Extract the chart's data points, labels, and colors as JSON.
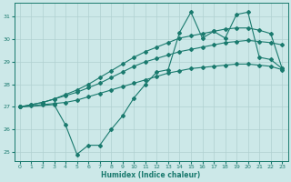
{
  "xlabel": "Humidex (Indice chaleur)",
  "xlim": [
    -0.5,
    23.5
  ],
  "ylim": [
    24.6,
    31.6
  ],
  "yticks": [
    25,
    26,
    27,
    28,
    29,
    30,
    31
  ],
  "xticks": [
    0,
    1,
    2,
    3,
    4,
    5,
    6,
    7,
    8,
    9,
    10,
    11,
    12,
    13,
    14,
    15,
    16,
    17,
    18,
    19,
    20,
    21,
    22,
    23
  ],
  "bg_color": "#cce8e8",
  "line_color": "#1a7a6e",
  "grid_color": "#b0d0d0",
  "line1_x": [
    0,
    1,
    2,
    3,
    4,
    5,
    6,
    7,
    8,
    9,
    10,
    11,
    12,
    13,
    14,
    15,
    16,
    17,
    18,
    19,
    20,
    21,
    22,
    23
  ],
  "line1_y": [
    27.0,
    27.05,
    27.1,
    27.15,
    27.2,
    27.3,
    27.45,
    27.6,
    27.75,
    27.9,
    28.05,
    28.2,
    28.35,
    28.5,
    28.6,
    28.7,
    28.75,
    28.8,
    28.85,
    28.9,
    28.9,
    28.85,
    28.8,
    28.65
  ],
  "line2_x": [
    0,
    1,
    2,
    3,
    4,
    5,
    6,
    7,
    8,
    9,
    10,
    11,
    12,
    13,
    14,
    15,
    16,
    17,
    18,
    19,
    20,
    21,
    22,
    23
  ],
  "line2_y": [
    27.0,
    27.1,
    27.2,
    27.35,
    27.5,
    27.65,
    27.85,
    28.05,
    28.3,
    28.55,
    28.8,
    29.0,
    29.15,
    29.3,
    29.45,
    29.55,
    29.65,
    29.75,
    29.85,
    29.9,
    29.95,
    29.9,
    29.85,
    29.75
  ],
  "line3_x": [
    0,
    1,
    2,
    3,
    4,
    5,
    6,
    7,
    8,
    9,
    10,
    11,
    12,
    13,
    14,
    15,
    16,
    17,
    18,
    19,
    20,
    21,
    22,
    23
  ],
  "line3_y": [
    27.0,
    27.1,
    27.2,
    27.35,
    27.55,
    27.75,
    28.0,
    28.3,
    28.6,
    28.9,
    29.2,
    29.45,
    29.65,
    29.85,
    30.05,
    30.15,
    30.25,
    30.35,
    30.45,
    30.5,
    30.5,
    30.4,
    30.25,
    28.7
  ],
  "line4_x": [
    0,
    3,
    4,
    5,
    6,
    7,
    8,
    9,
    10,
    11,
    12,
    13,
    14,
    15,
    16,
    17,
    18,
    19,
    20,
    21,
    22,
    23
  ],
  "line4_y": [
    27.0,
    27.1,
    26.2,
    24.9,
    25.3,
    25.3,
    26.0,
    26.6,
    27.4,
    28.0,
    28.55,
    28.65,
    30.3,
    31.2,
    30.05,
    30.35,
    30.05,
    31.1,
    31.2,
    29.2,
    29.1,
    28.7
  ]
}
